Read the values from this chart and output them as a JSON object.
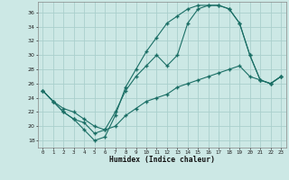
{
  "xlabel": "Humidex (Indice chaleur)",
  "bg_color": "#cce8e5",
  "grid_color": "#aacfcc",
  "line_color": "#1a6e65",
  "ylim": [
    17,
    37.5
  ],
  "xlim": [
    -0.5,
    23.5
  ],
  "yticks": [
    18,
    20,
    22,
    24,
    26,
    28,
    30,
    32,
    34,
    36
  ],
  "xticks": [
    0,
    1,
    2,
    3,
    4,
    5,
    6,
    7,
    8,
    9,
    10,
    11,
    12,
    13,
    14,
    15,
    16,
    17,
    18,
    19,
    20,
    21,
    22,
    23
  ],
  "line1_x": [
    0,
    1,
    2,
    3,
    4,
    5,
    6,
    7,
    8,
    9,
    10,
    11,
    12,
    13,
    14,
    15,
    16,
    17,
    18,
    19,
    20,
    21,
    22,
    23
  ],
  "line1_y": [
    25.0,
    23.5,
    22.0,
    21.0,
    19.5,
    18.0,
    18.5,
    21.5,
    25.5,
    28.0,
    30.5,
    32.5,
    34.5,
    35.5,
    36.5,
    37.0,
    37.0,
    37.0,
    36.5,
    34.5,
    30.0,
    26.5,
    26.0,
    27.0
  ],
  "line2_x": [
    0,
    1,
    2,
    3,
    4,
    5,
    6,
    7,
    8,
    9,
    10,
    11,
    12,
    13,
    14,
    15,
    16,
    17,
    18,
    19,
    20,
    21,
    22,
    23
  ],
  "line2_y": [
    25.0,
    23.5,
    22.0,
    21.0,
    20.5,
    19.0,
    19.5,
    22.0,
    25.0,
    27.0,
    28.5,
    30.0,
    28.5,
    30.0,
    34.5,
    36.5,
    37.0,
    37.0,
    36.5,
    34.5,
    30.0,
    26.5,
    26.0,
    27.0
  ],
  "line3_x": [
    0,
    1,
    2,
    3,
    4,
    5,
    6,
    7,
    8,
    9,
    10,
    11,
    12,
    13,
    14,
    15,
    16,
    17,
    18,
    19,
    20,
    21,
    22,
    23
  ],
  "line3_y": [
    25.0,
    23.5,
    22.5,
    22.0,
    21.0,
    20.0,
    19.5,
    20.0,
    21.5,
    22.5,
    23.5,
    24.0,
    24.5,
    25.5,
    26.0,
    26.5,
    27.0,
    27.5,
    28.0,
    28.5,
    27.0,
    26.5,
    26.0,
    27.0
  ]
}
